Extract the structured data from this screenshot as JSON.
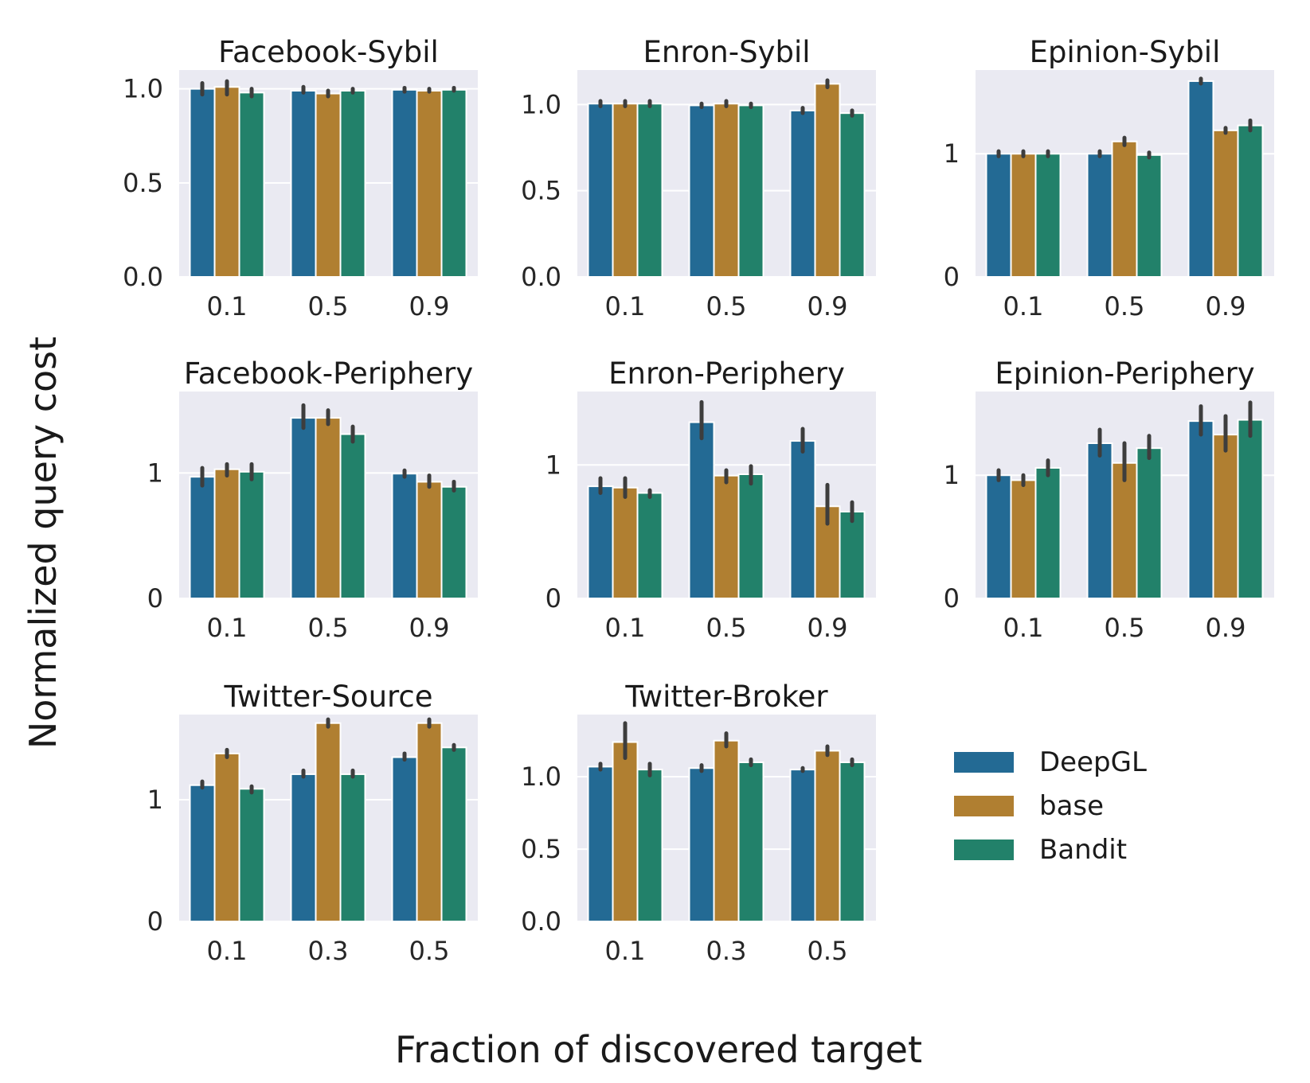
{
  "colors": {
    "DeepGL": "#236a94",
    "base": "#b07f31",
    "Bandit": "#22816a",
    "panel_bg": "#eaeaf2",
    "error_bar": "#3d3d3d"
  },
  "ylabel": "Normalized query cost",
  "xlabel": "Fraction of discovered target",
  "legend": [
    "DeepGL",
    "base",
    "Bandit"
  ],
  "chart_data": [
    {
      "type": "bar",
      "title": "Facebook-Sybil",
      "categories": [
        "0.1",
        "0.5",
        "0.9"
      ],
      "ylim": [
        0,
        1.1
      ],
      "yticks": [
        0.0,
        0.5,
        1.0
      ],
      "ytick_labels": [
        "0.0",
        "0.5",
        "1.0"
      ],
      "series": [
        {
          "name": "DeepGL",
          "values": [
            1.0,
            0.99,
            0.995
          ],
          "err": [
            [
              0.97,
              1.03
            ],
            [
              0.98,
              1.01
            ],
            [
              0.985,
              1.005
            ]
          ]
        },
        {
          "name": "base",
          "values": [
            1.01,
            0.975,
            0.99
          ],
          "err": [
            [
              0.97,
              1.04
            ],
            [
              0.96,
              0.99
            ],
            [
              0.985,
              1.0
            ]
          ]
        },
        {
          "name": "Bandit",
          "values": [
            0.98,
            0.99,
            0.995
          ],
          "err": [
            [
              0.96,
              1.0
            ],
            [
              0.98,
              1.0
            ],
            [
              0.99,
              1.005
            ]
          ]
        }
      ]
    },
    {
      "type": "bar",
      "title": "Enron-Sybil",
      "categories": [
        "0.1",
        "0.5",
        "0.9"
      ],
      "ylim": [
        0,
        1.2
      ],
      "yticks": [
        0.0,
        0.5,
        1.0
      ],
      "ytick_labels": [
        "0.0",
        "0.5",
        "1.0"
      ],
      "series": [
        {
          "name": "DeepGL",
          "values": [
            1.005,
            0.995,
            0.965
          ],
          "err": [
            [
              0.99,
              1.02
            ],
            [
              0.985,
              1.005
            ],
            [
              0.95,
              0.98
            ]
          ]
        },
        {
          "name": "base",
          "values": [
            1.005,
            1.005,
            1.12
          ],
          "err": [
            [
              0.99,
              1.02
            ],
            [
              0.99,
              1.02
            ],
            [
              1.1,
              1.14
            ]
          ]
        },
        {
          "name": "Bandit",
          "values": [
            1.005,
            0.995,
            0.95
          ],
          "err": [
            [
              0.99,
              1.02
            ],
            [
              0.985,
              1.005
            ],
            [
              0.935,
              0.965
            ]
          ]
        }
      ]
    },
    {
      "type": "bar",
      "title": "Epinion-Sybil",
      "categories": [
        "0.1",
        "0.5",
        "0.9"
      ],
      "ylim": [
        0,
        1.68
      ],
      "yticks": [
        0,
        1
      ],
      "ytick_labels": [
        "0",
        "1"
      ],
      "series": [
        {
          "name": "DeepGL",
          "values": [
            1.0,
            1.0,
            1.59
          ],
          "err": [
            [
              0.98,
              1.02
            ],
            [
              0.98,
              1.02
            ],
            [
              1.57,
              1.61
            ]
          ]
        },
        {
          "name": "base",
          "values": [
            1.0,
            1.1,
            1.19
          ],
          "err": [
            [
              0.98,
              1.02
            ],
            [
              1.07,
              1.13
            ],
            [
              1.17,
              1.21
            ]
          ]
        },
        {
          "name": "Bandit",
          "values": [
            1.0,
            0.99,
            1.23
          ],
          "err": [
            [
              0.98,
              1.02
            ],
            [
              0.97,
              1.01
            ],
            [
              1.19,
              1.27
            ]
          ]
        }
      ]
    },
    {
      "type": "bar",
      "title": "Facebook-Periphery",
      "categories": [
        "0.1",
        "0.5",
        "0.9"
      ],
      "ylim": [
        0,
        1.65
      ],
      "yticks": [
        0,
        1
      ],
      "ytick_labels": [
        "0",
        "1"
      ],
      "series": [
        {
          "name": "DeepGL",
          "values": [
            0.97,
            1.44,
            0.995
          ],
          "err": [
            [
              0.9,
              1.04
            ],
            [
              1.36,
              1.54
            ],
            [
              0.97,
              1.02
            ]
          ]
        },
        {
          "name": "base",
          "values": [
            1.03,
            1.44,
            0.93
          ],
          "err": [
            [
              0.98,
              1.07
            ],
            [
              1.39,
              1.5
            ],
            [
              0.89,
              0.98
            ]
          ]
        },
        {
          "name": "Bandit",
          "values": [
            1.01,
            1.31,
            0.89
          ],
          "err": [
            [
              0.95,
              1.07
            ],
            [
              1.25,
              1.37
            ],
            [
              0.86,
              0.93
            ]
          ]
        }
      ]
    },
    {
      "type": "bar",
      "title": "Enron-Periphery",
      "categories": [
        "0.1",
        "0.5",
        "0.9"
      ],
      "ylim": [
        0,
        1.55
      ],
      "yticks": [
        0,
        1
      ],
      "ytick_labels": [
        "0",
        "1"
      ],
      "series": [
        {
          "name": "DeepGL",
          "values": [
            0.84,
            1.32,
            1.18
          ],
          "err": [
            [
              0.79,
              0.9
            ],
            [
              1.2,
              1.47
            ],
            [
              1.1,
              1.27
            ]
          ]
        },
        {
          "name": "base",
          "values": [
            0.83,
            0.92,
            0.69
          ],
          "err": [
            [
              0.76,
              0.9
            ],
            [
              0.87,
              0.96
            ],
            [
              0.56,
              0.85
            ]
          ]
        },
        {
          "name": "Bandit",
          "values": [
            0.79,
            0.93,
            0.65
          ],
          "err": [
            [
              0.76,
              0.81
            ],
            [
              0.86,
              0.99
            ],
            [
              0.58,
              0.72
            ]
          ]
        }
      ]
    },
    {
      "type": "bar",
      "title": "Epinion-Periphery",
      "categories": [
        "0.1",
        "0.5",
        "0.9"
      ],
      "ylim": [
        0,
        1.68
      ],
      "yticks": [
        0,
        1
      ],
      "ytick_labels": [
        "0",
        "1"
      ],
      "series": [
        {
          "name": "DeepGL",
          "values": [
            1.0,
            1.26,
            1.44
          ],
          "err": [
            [
              0.96,
              1.04
            ],
            [
              1.16,
              1.37
            ],
            [
              1.33,
              1.56
            ]
          ]
        },
        {
          "name": "base",
          "values": [
            0.96,
            1.1,
            1.33
          ],
          "err": [
            [
              0.92,
              1.0
            ],
            [
              0.96,
              1.26
            ],
            [
              1.2,
              1.48
            ]
          ]
        },
        {
          "name": "Bandit",
          "values": [
            1.06,
            1.22,
            1.45
          ],
          "err": [
            [
              1.0,
              1.12
            ],
            [
              1.14,
              1.32
            ],
            [
              1.32,
              1.59
            ]
          ]
        }
      ]
    },
    {
      "type": "bar",
      "title": "Twitter-Source",
      "categories": [
        "0.1",
        "0.3",
        "0.5"
      ],
      "ylim": [
        0,
        1.7
      ],
      "yticks": [
        0,
        1
      ],
      "ytick_labels": [
        "0",
        "1"
      ],
      "series": [
        {
          "name": "DeepGL",
          "values": [
            1.12,
            1.21,
            1.35
          ],
          "err": [
            [
              1.1,
              1.15
            ],
            [
              1.19,
              1.24
            ],
            [
              1.33,
              1.38
            ]
          ]
        },
        {
          "name": "base",
          "values": [
            1.38,
            1.63,
            1.63
          ],
          "err": [
            [
              1.35,
              1.41
            ],
            [
              1.6,
              1.66
            ],
            [
              1.6,
              1.66
            ]
          ]
        },
        {
          "name": "Bandit",
          "values": [
            1.09,
            1.21,
            1.43
          ],
          "err": [
            [
              1.06,
              1.11
            ],
            [
              1.19,
              1.24
            ],
            [
              1.41,
              1.45
            ]
          ]
        }
      ]
    },
    {
      "type": "bar",
      "title": "Twitter-Broker",
      "categories": [
        "0.1",
        "0.3",
        "0.5"
      ],
      "ylim": [
        0,
        1.43
      ],
      "yticks": [
        0.0,
        0.5,
        1.0
      ],
      "ytick_labels": [
        "0.0",
        "0.5",
        "1.0"
      ],
      "series": [
        {
          "name": "DeepGL",
          "values": [
            1.07,
            1.06,
            1.05
          ],
          "err": [
            [
              1.05,
              1.09
            ],
            [
              1.04,
              1.08
            ],
            [
              1.04,
              1.06
            ]
          ]
        },
        {
          "name": "base",
          "values": [
            1.24,
            1.25,
            1.18
          ],
          "err": [
            [
              1.13,
              1.37
            ],
            [
              1.21,
              1.3
            ],
            [
              1.15,
              1.21
            ]
          ]
        },
        {
          "name": "Bandit",
          "values": [
            1.05,
            1.1,
            1.1
          ],
          "err": [
            [
              1.01,
              1.09
            ],
            [
              1.08,
              1.12
            ],
            [
              1.08,
              1.12
            ]
          ]
        }
      ]
    }
  ]
}
